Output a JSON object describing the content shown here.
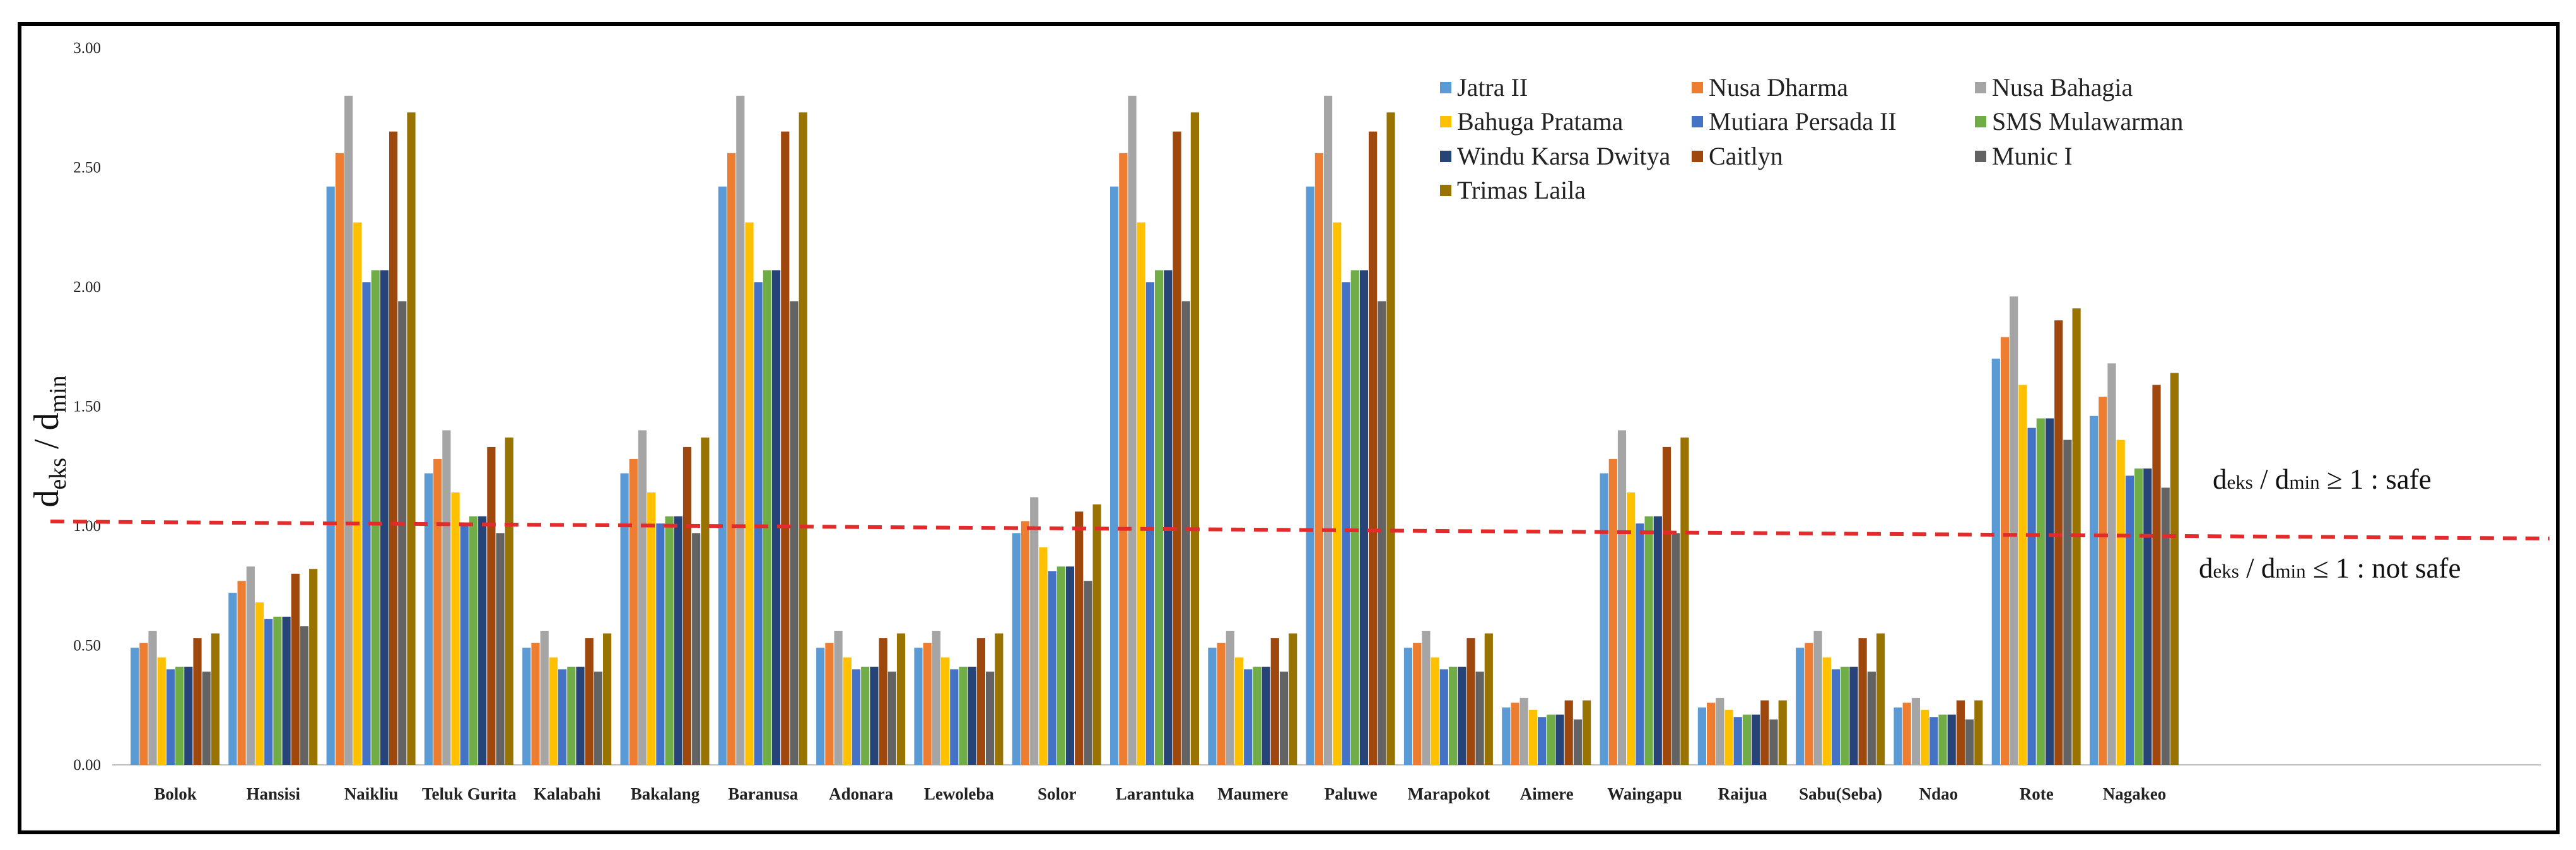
{
  "chart_data": {
    "type": "bar",
    "title": "",
    "xlabel": "",
    "ylabel": {
      "d1": "d",
      "s1": "eks",
      "slash": " / ",
      "d2": "d",
      "s2": "min"
    },
    "ylim": [
      0,
      3
    ],
    "ytick_labels": [
      "0.00",
      "0.50",
      "1.00",
      "1.50",
      "2.00",
      "2.50",
      "3.00"
    ],
    "grid": false,
    "legend_position": "top-right",
    "categories": [
      "Bolok",
      "Hansisi",
      "Naikliu",
      "Teluk Gurita",
      "Kalabahi",
      "Bakalang",
      "Baranusa",
      "Adonara",
      "Lewoleba",
      "Solor",
      "Larantuka",
      "Maumere",
      "Paluwe",
      "Marapokot",
      "Aimere",
      "Waingapu",
      "Raijua",
      "Sabu(Seba)",
      "Ndao",
      "Rote",
      "Nagakeo"
    ],
    "series": [
      {
        "name": "Jatra II",
        "color": "#5B9BD5",
        "values": [
          0.49,
          0.72,
          2.42,
          1.22,
          0.49,
          1.22,
          2.42,
          0.49,
          0.49,
          0.97,
          2.42,
          0.49,
          2.42,
          0.49,
          0.24,
          1.22,
          0.24,
          0.49,
          0.24,
          1.7,
          1.46
        ]
      },
      {
        "name": "Nusa Dharma",
        "color": "#ED7D31",
        "values": [
          0.51,
          0.77,
          2.56,
          1.28,
          0.51,
          1.28,
          2.56,
          0.51,
          0.51,
          1.02,
          2.56,
          0.51,
          2.56,
          0.51,
          0.26,
          1.28,
          0.26,
          0.51,
          0.26,
          1.79,
          1.54
        ]
      },
      {
        "name": "Nusa Bahagia",
        "color": "#A5A5A5",
        "values": [
          0.56,
          0.83,
          2.8,
          1.4,
          0.56,
          1.4,
          2.8,
          0.56,
          0.56,
          1.12,
          2.8,
          0.56,
          2.8,
          0.56,
          0.28,
          1.4,
          0.28,
          0.56,
          0.28,
          1.96,
          1.68
        ]
      },
      {
        "name": "Bahuga Pratama",
        "color": "#FFC000",
        "values": [
          0.45,
          0.68,
          2.27,
          1.14,
          0.45,
          1.14,
          2.27,
          0.45,
          0.45,
          0.91,
          2.27,
          0.45,
          2.27,
          0.45,
          0.23,
          1.14,
          0.23,
          0.45,
          0.23,
          1.59,
          1.36
        ]
      },
      {
        "name": "Mutiara Persada II",
        "color": "#4472C4",
        "values": [
          0.4,
          0.61,
          2.02,
          1.01,
          0.4,
          1.01,
          2.02,
          0.4,
          0.4,
          0.81,
          2.02,
          0.4,
          2.02,
          0.4,
          0.2,
          1.01,
          0.2,
          0.4,
          0.2,
          1.41,
          1.21
        ]
      },
      {
        "name": "SMS Mulawarman",
        "color": "#70AD47",
        "values": [
          0.41,
          0.62,
          2.07,
          1.04,
          0.41,
          1.04,
          2.07,
          0.41,
          0.41,
          0.83,
          2.07,
          0.41,
          2.07,
          0.41,
          0.21,
          1.04,
          0.21,
          0.41,
          0.21,
          1.45,
          1.24
        ]
      },
      {
        "name": "Windu Karsa Dwitya",
        "color": "#264478",
        "values": [
          0.41,
          0.62,
          2.07,
          1.04,
          0.41,
          1.04,
          2.07,
          0.41,
          0.41,
          0.83,
          2.07,
          0.41,
          2.07,
          0.41,
          0.21,
          1.04,
          0.21,
          0.41,
          0.21,
          1.45,
          1.24
        ]
      },
      {
        "name": "Caitlyn",
        "color": "#9E480E",
        "values": [
          0.53,
          0.8,
          2.65,
          1.33,
          0.53,
          1.33,
          2.65,
          0.53,
          0.53,
          1.06,
          2.65,
          0.53,
          2.65,
          0.53,
          0.27,
          1.33,
          0.27,
          0.53,
          0.27,
          1.86,
          1.59
        ]
      },
      {
        "name": "Munic I",
        "color": "#636363",
        "values": [
          0.39,
          0.58,
          1.94,
          0.97,
          0.39,
          0.97,
          1.94,
          0.39,
          0.39,
          0.77,
          1.94,
          0.39,
          1.94,
          0.39,
          0.19,
          0.97,
          0.19,
          0.39,
          0.19,
          1.36,
          1.16
        ]
      },
      {
        "name": "Trimas Laila",
        "color": "#997300",
        "values": [
          0.55,
          0.82,
          2.73,
          1.37,
          0.55,
          1.37,
          2.73,
          0.55,
          0.55,
          1.09,
          2.73,
          0.55,
          2.73,
          0.55,
          0.27,
          1.37,
          0.27,
          0.55,
          0.27,
          1.91,
          1.64
        ]
      }
    ],
    "reference_line": {
      "value": 1.0,
      "color": "#E32B2B",
      "style": "dashed"
    },
    "annotations": {
      "safe": {
        "d1": "d",
        "s1": "eks",
        "slash": " / ",
        "d2": "d",
        "s2": "min",
        "rest": " ≥ 1 : safe"
      },
      "not_safe": {
        "d1": "d",
        "s1": "eks",
        "slash": " / ",
        "d2": "d",
        "s2": "min",
        "rest": " ≤ 1 : not safe"
      }
    }
  }
}
